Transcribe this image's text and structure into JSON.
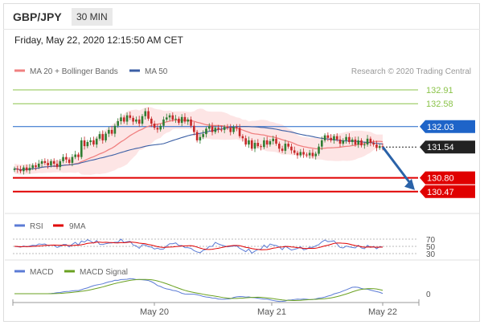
{
  "header": {
    "pair": "GBP/JPY",
    "timeframe": "30 MIN"
  },
  "datetime": "Friday, May 22, 2020 12:15:50 AM CET",
  "legend": {
    "ma20_bb": "MA 20 + Bollinger Bands",
    "ma50": "MA 50",
    "credit": "Research © 2020 Trading Central",
    "rsi": "RSI",
    "ma9": "9MA",
    "macd": "MACD",
    "macd_signal": "MACD Signal"
  },
  "colors": {
    "bullish": "#2e7d32",
    "bearish": "#c62828",
    "ma20": "#f08080",
    "band": "#fde0e0",
    "ma50": "#3b5fa5",
    "resistance": "#8bc34a",
    "pivot": "#1e64c8",
    "support": "#e00000",
    "last": "#222222",
    "arrow": "#2a62a8",
    "rsi": "#5b7bd5",
    "macd": "#5b7bd5",
    "macd_signal": "#6aa121"
  },
  "chart_data": {
    "type": "candlestick",
    "x_ticks": [
      "May 20",
      "May 21",
      "May 22"
    ],
    "ylim": [
      130.1,
      133.2
    ],
    "levels": [
      {
        "label": "132.91",
        "value": 132.91,
        "kind": "resistance"
      },
      {
        "label": "132.58",
        "value": 132.58,
        "kind": "resistance"
      },
      {
        "label": "132.03",
        "value": 132.03,
        "kind": "pivot"
      },
      {
        "label": "131.54",
        "value": 131.54,
        "kind": "last"
      },
      {
        "label": "130.80",
        "value": 130.8,
        "kind": "support"
      },
      {
        "label": "130.47",
        "value": 130.47,
        "kind": "support"
      }
    ],
    "close": [
      131.02,
      131.0,
      130.96,
      131.05,
      130.98,
      131.04,
      131.1,
      131.06,
      131.14,
      131.2,
      131.16,
      131.1,
      131.2,
      131.14,
      131.06,
      131.2,
      131.3,
      131.24,
      131.16,
      131.3,
      131.36,
      131.3,
      131.7,
      131.56,
      131.66,
      131.7,
      131.6,
      131.74,
      131.85,
      131.7,
      131.86,
      131.95,
      131.86,
      132.05,
      132.16,
      132.25,
      132.15,
      132.3,
      132.24,
      132.15,
      132.2,
      132.1,
      132.28,
      132.4,
      132.22,
      132.1,
      132.0,
      131.96,
      132.05,
      132.2,
      132.25,
      132.3,
      132.2,
      132.22,
      132.12,
      132.26,
      132.15,
      132.2,
      132.05,
      131.9,
      131.7,
      131.78,
      131.85,
      131.98,
      132.04,
      131.9,
      132.0,
      131.96,
      131.95,
      132.02,
      132.0,
      131.9,
      132.02,
      132.0,
      131.8,
      131.75,
      131.6,
      131.7,
      131.5,
      131.64,
      131.56,
      131.54,
      131.7,
      131.6,
      131.68,
      131.74,
      131.62,
      131.5,
      131.45,
      131.62,
      131.55,
      131.46,
      131.4,
      131.34,
      131.42,
      131.36,
      131.34,
      131.4,
      131.32,
      131.38,
      131.55,
      131.7,
      131.82,
      131.76,
      131.7,
      131.8,
      131.72,
      131.62,
      131.7,
      131.78,
      131.66,
      131.72,
      131.6,
      131.7,
      131.58,
      131.6,
      131.74,
      131.64,
      131.6,
      131.52,
      131.56,
      131.54
    ],
    "rsi_levels": [
      "70",
      "50",
      "30"
    ],
    "macd_levels": [
      "0"
    ]
  }
}
